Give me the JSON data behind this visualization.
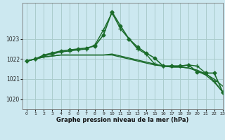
{
  "title": "Graphe pression niveau de la mer (hPa)",
  "background_color": "#cce8f0",
  "grid_color": "#aacccc",
  "line_color": "#1a6b2a",
  "xlim": [
    -0.5,
    23
  ],
  "ylim": [
    1019.5,
    1024.8
  ],
  "yticks": [
    1020,
    1021,
    1022,
    1023
  ],
  "xticks": [
    0,
    1,
    2,
    3,
    4,
    5,
    6,
    7,
    8,
    9,
    10,
    11,
    12,
    13,
    14,
    15,
    16,
    17,
    18,
    19,
    20,
    21,
    22,
    23
  ],
  "series": [
    {
      "x": [
        0,
        1,
        2,
        3,
        4,
        5,
        6,
        7,
        8,
        9,
        10,
        11,
        12,
        13,
        14,
        15,
        16,
        17,
        18,
        19,
        20,
        21,
        22,
        23
      ],
      "y": [
        1021.9,
        1022.0,
        1022.1,
        1022.15,
        1022.2,
        1022.2,
        1022.2,
        1022.2,
        1022.2,
        1022.2,
        1022.2,
        1022.1,
        1022.0,
        1021.9,
        1021.8,
        1021.7,
        1021.65,
        1021.6,
        1021.6,
        1021.55,
        1021.4,
        1021.2,
        1020.85,
        1020.35
      ],
      "marker": null,
      "linewidth": 1.0,
      "linestyle": "-"
    },
    {
      "x": [
        0,
        1,
        2,
        3,
        4,
        5,
        6,
        7,
        8,
        9,
        10,
        11,
        12,
        13,
        14,
        15,
        16,
        17,
        18,
        19,
        20,
        21,
        22,
        23
      ],
      "y": [
        1021.9,
        1022.0,
        1022.1,
        1022.15,
        1022.2,
        1022.2,
        1022.2,
        1022.2,
        1022.2,
        1022.2,
        1022.25,
        1022.15,
        1022.05,
        1021.95,
        1021.85,
        1021.75,
        1021.65,
        1021.6,
        1021.6,
        1021.55,
        1021.45,
        1021.25,
        1021.0,
        1020.65
      ],
      "marker": null,
      "linewidth": 1.0,
      "linestyle": "-"
    },
    {
      "x": [
        0,
        1,
        2,
        3,
        4,
        5,
        6,
        7,
        8,
        9,
        10,
        11,
        12,
        13,
        14,
        15,
        16,
        17,
        18,
        19,
        20,
        21,
        22,
        23
      ],
      "y": [
        1021.9,
        1022.0,
        1022.15,
        1022.25,
        1022.35,
        1022.4,
        1022.45,
        1022.5,
        1022.7,
        1023.45,
        1024.3,
        1023.5,
        1023.0,
        1022.5,
        1022.25,
        1021.75,
        1021.65,
        1021.65,
        1021.65,
        1021.7,
        1021.65,
        1021.3,
        1020.9,
        1020.35
      ],
      "marker": "+",
      "markersize": 4,
      "linewidth": 1.0,
      "linestyle": "-"
    },
    {
      "x": [
        0,
        1,
        2,
        3,
        4,
        5,
        6,
        7,
        8,
        9,
        10,
        11,
        12,
        13,
        14,
        15,
        16,
        17,
        18,
        19,
        20,
        21,
        22,
        23
      ],
      "y": [
        1021.9,
        1022.0,
        1022.2,
        1022.3,
        1022.4,
        1022.45,
        1022.5,
        1022.55,
        1022.65,
        1023.2,
        1024.35,
        1023.65,
        1023.0,
        1022.6,
        1022.3,
        1022.05,
        1021.65,
        1021.65,
        1021.65,
        1021.7,
        1021.35,
        1021.3,
        1021.3,
        1020.35
      ],
      "marker": "D",
      "markersize": 2.5,
      "linewidth": 1.2,
      "linestyle": "-"
    }
  ]
}
